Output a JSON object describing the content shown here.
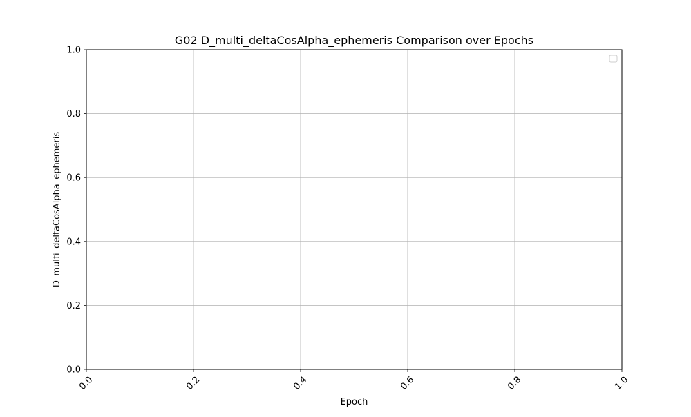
{
  "chart_data": {
    "type": "line",
    "title": "G02 D_multi_deltaCosAlpha_ephemeris Comparison over Epochs",
    "xlabel": "Epoch",
    "ylabel": "D_multi_deltaCosAlpha_ephemeris",
    "xlim": [
      0.0,
      1.0
    ],
    "ylim": [
      0.0,
      1.0
    ],
    "xticks": [
      0.0,
      0.2,
      0.4,
      0.6,
      0.8,
      1.0
    ],
    "yticks": [
      0.0,
      0.2,
      0.4,
      0.6,
      0.8,
      1.0
    ],
    "x_tick_labels": [
      "0.0",
      "0.2",
      "0.4",
      "0.6",
      "0.8",
      "1.0"
    ],
    "y_tick_labels": [
      "0.0",
      "0.2",
      "0.4",
      "0.6",
      "0.8",
      "1.0"
    ],
    "x_tick_rotation_deg": 45,
    "grid": true,
    "legend": {
      "placement": "upper right",
      "entries": []
    },
    "series": []
  },
  "colors": {
    "grid": "#b0b0b0",
    "axes": "#000000",
    "legend_border": "#cccccc"
  }
}
